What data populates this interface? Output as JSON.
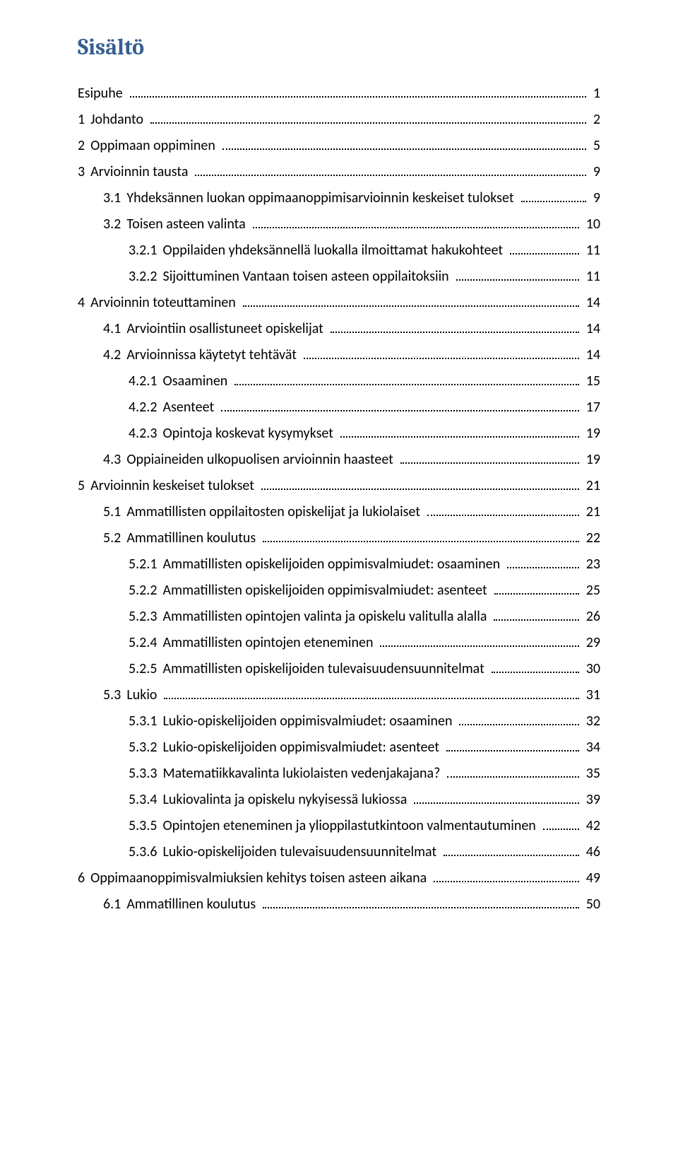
{
  "title": "Sisältö",
  "entries": [
    {
      "indent": 0,
      "num": "",
      "text": "Esipuhe",
      "page": "1"
    },
    {
      "indent": 0,
      "num": "1",
      "text": "Johdanto",
      "page": "2"
    },
    {
      "indent": 0,
      "num": "2",
      "text": "Oppimaan oppiminen",
      "page": "5"
    },
    {
      "indent": 0,
      "num": "3",
      "text": "Arvioinnin tausta",
      "page": "9"
    },
    {
      "indent": 1,
      "num": "3.1",
      "text": "Yhdeksännen luokan oppimaanoppimisarvioinnin keskeiset tulokset",
      "page": "9"
    },
    {
      "indent": 1,
      "num": "3.2",
      "text": "Toisen asteen valinta",
      "page": "10"
    },
    {
      "indent": 2,
      "num": "3.2.1",
      "text": "Oppilaiden yhdeksännellä luokalla ilmoittamat hakukohteet",
      "page": "11"
    },
    {
      "indent": 2,
      "num": "3.2.2",
      "text": "Sijoittuminen Vantaan toisen asteen oppilaitoksiin",
      "page": "11"
    },
    {
      "indent": 0,
      "num": "4",
      "text": "Arvioinnin toteuttaminen",
      "page": "14"
    },
    {
      "indent": 1,
      "num": "4.1",
      "text": "Arviointiin osallistuneet opiskelijat",
      "page": "14"
    },
    {
      "indent": 1,
      "num": "4.2",
      "text": "Arvioinnissa käytetyt tehtävät",
      "page": "14"
    },
    {
      "indent": 2,
      "num": "4.2.1",
      "text": "Osaaminen",
      "page": "15"
    },
    {
      "indent": 2,
      "num": "4.2.2",
      "text": "Asenteet",
      "page": "17"
    },
    {
      "indent": 2,
      "num": "4.2.3",
      "text": "Opintoja koskevat kysymykset",
      "page": "19"
    },
    {
      "indent": 1,
      "num": "4.3",
      "text": "Oppiaineiden ulkopuolisen arvioinnin haasteet",
      "page": "19"
    },
    {
      "indent": 0,
      "num": "5",
      "text": "Arvioinnin keskeiset tulokset",
      "page": "21"
    },
    {
      "indent": 1,
      "num": "5.1",
      "text": "Ammatillisten oppilaitosten opiskelijat ja lukiolaiset",
      "page": "21"
    },
    {
      "indent": 1,
      "num": "5.2",
      "text": "Ammatillinen koulutus",
      "page": "22"
    },
    {
      "indent": 2,
      "num": "5.2.1",
      "text": "Ammatillisten opiskelijoiden oppimisvalmiudet: osaaminen",
      "page": "23"
    },
    {
      "indent": 2,
      "num": "5.2.2",
      "text": "Ammatillisten opiskelijoiden oppimisvalmiudet: asenteet",
      "page": "25"
    },
    {
      "indent": 2,
      "num": "5.2.3",
      "text": "Ammatillisten opintojen valinta ja opiskelu valitulla alalla",
      "page": "26"
    },
    {
      "indent": 2,
      "num": "5.2.4",
      "text": "Ammatillisten opintojen eteneminen",
      "page": "29"
    },
    {
      "indent": 2,
      "num": "5.2.5",
      "text": "Ammatillisten opiskelijoiden tulevaisuudensuunnitelmat",
      "page": "30"
    },
    {
      "indent": 1,
      "num": "5.3",
      "text": "Lukio",
      "page": "31"
    },
    {
      "indent": 2,
      "num": "5.3.1",
      "text": "Lukio-opiskelijoiden oppimisvalmiudet: osaaminen",
      "page": "32"
    },
    {
      "indent": 2,
      "num": "5.3.2",
      "text": "Lukio-opiskelijoiden oppimisvalmiudet: asenteet",
      "page": "34"
    },
    {
      "indent": 2,
      "num": "5.3.3",
      "text": "Matematiikkavalinta lukiolaisten vedenjakajana?",
      "page": "35"
    },
    {
      "indent": 2,
      "num": "5.3.4",
      "text": "Lukiovalinta ja opiskelu nykyisessä lukiossa",
      "page": "39"
    },
    {
      "indent": 2,
      "num": "5.3.5",
      "text": "Opintojen eteneminen ja ylioppilastutkintoon valmentautuminen",
      "page": "42"
    },
    {
      "indent": 2,
      "num": "5.3.6",
      "text": "Lukio-opiskelijoiden tulevaisuudensuunnitelmat",
      "page": "46"
    },
    {
      "indent": 0,
      "num": "6",
      "text": "Oppimaanoppimisvalmiuksien kehitys toisen asteen aikana",
      "page": "49"
    },
    {
      "indent": 1,
      "num": "6.1",
      "text": "Ammatillinen koulutus",
      "page": "50"
    }
  ]
}
